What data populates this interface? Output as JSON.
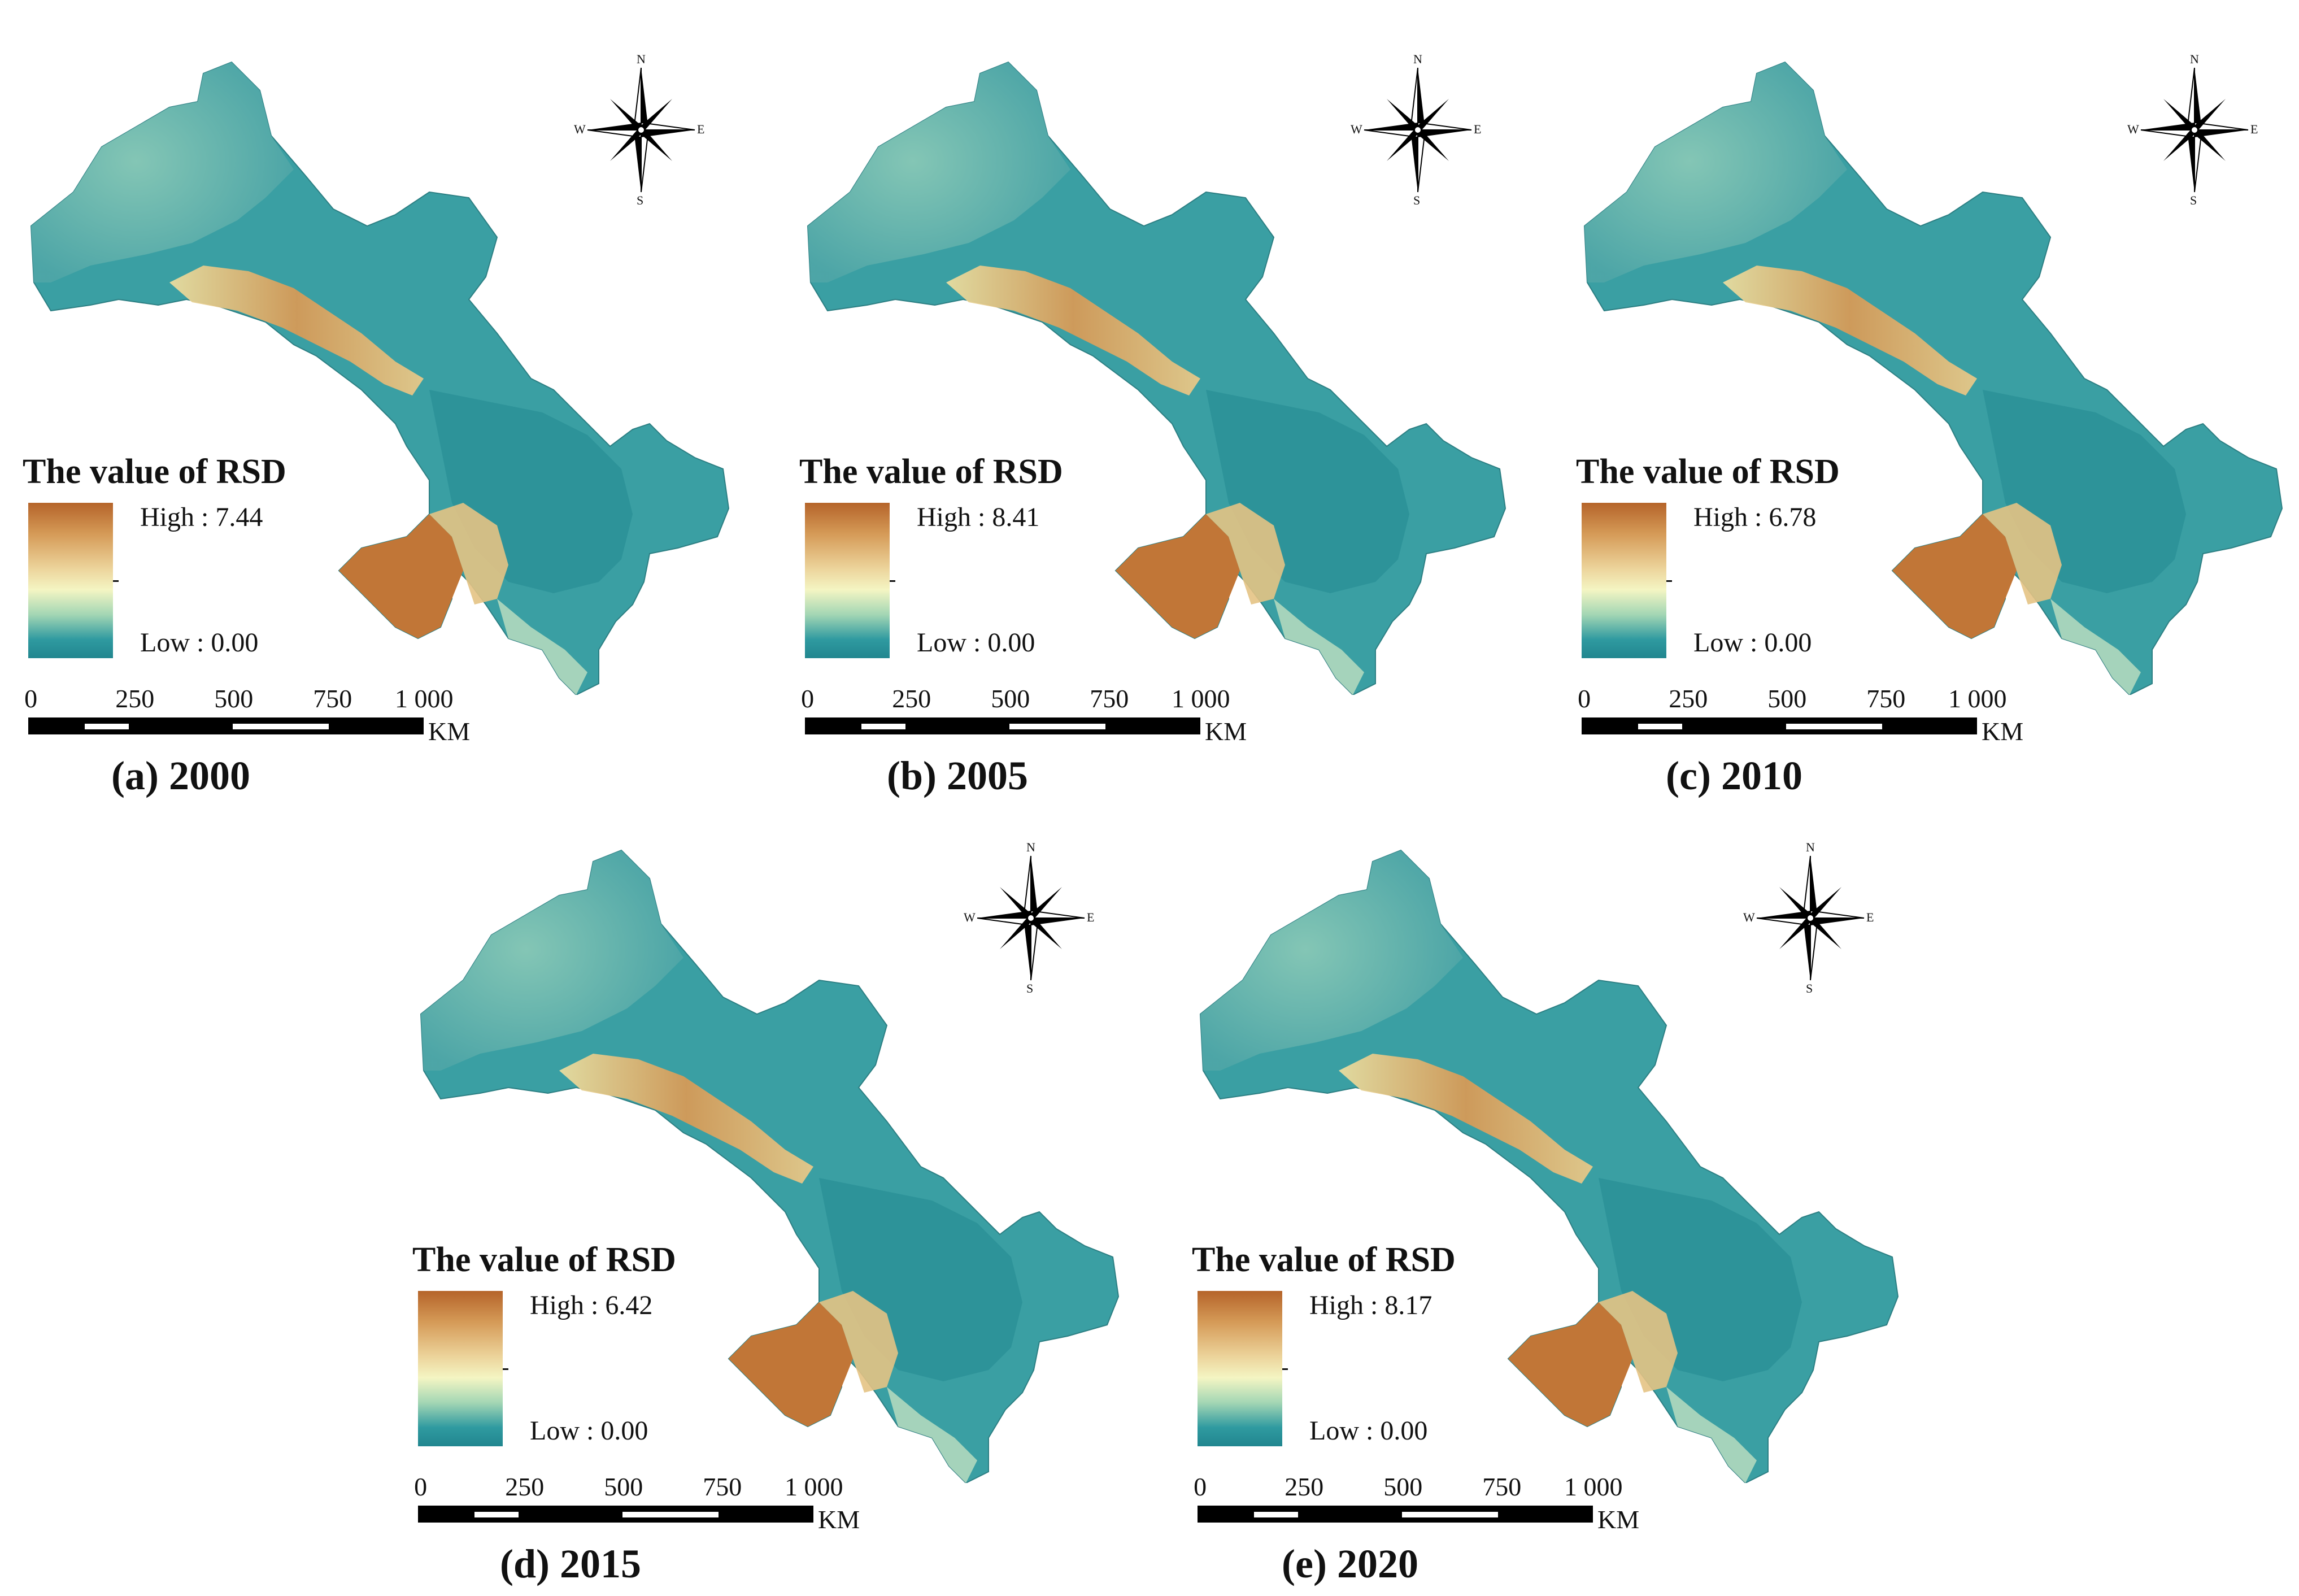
{
  "figure": {
    "compass": {
      "n": "N",
      "s": "S",
      "e": "E",
      "w": "W",
      "icon": "north-arrow-compass-icon"
    },
    "legend_title": "The value of RSD",
    "scale": {
      "ticks": [
        "0",
        "250",
        "500",
        "750",
        "1 000"
      ],
      "unit": "KM"
    },
    "colors": {
      "high": "#b5642a",
      "mid": "#f4f5c3",
      "low": "#21868f"
    },
    "panels": [
      {
        "caption": "(a) 2000",
        "high": "High : 7.44",
        "low": "Low : 0.00"
      },
      {
        "caption": "(b) 2005",
        "high": "High : 8.41",
        "low": "Low : 0.00"
      },
      {
        "caption": "(c) 2010",
        "high": "High : 6.78",
        "low": "Low : 0.00"
      },
      {
        "caption": "(d) 2015",
        "high": "High : 6.42",
        "low": "Low : 0.00"
      },
      {
        "caption": "(e) 2020",
        "high": "High : 8.17",
        "low": "Low : 0.00"
      }
    ]
  }
}
